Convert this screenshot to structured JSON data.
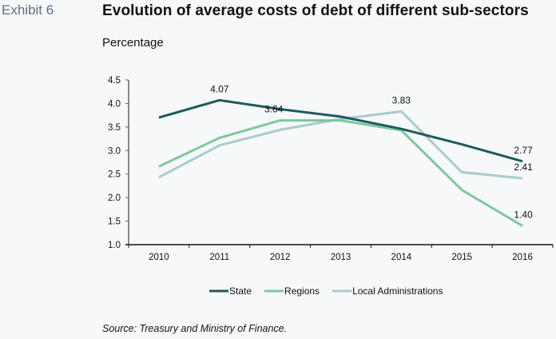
{
  "header": {
    "exhibit_label": "Exhibit 6",
    "title": "Evolution of average costs of debt of different sub-sectors",
    "subtitle": "Percentage"
  },
  "source": "Source: Treasury and Ministry of Finance.",
  "chart_data": {
    "type": "line",
    "title": "Evolution of average costs of debt of different sub-sectors",
    "ylabel": "Percentage",
    "xlabel": "",
    "categories": [
      "2010",
      "2011",
      "2012",
      "2013",
      "2014",
      "2015",
      "2016"
    ],
    "ylim": [
      1.0,
      4.5
    ],
    "yticks": [
      "1.0",
      "1.5",
      "2.0",
      "2.5",
      "3.0",
      "3.5",
      "4.0",
      "4.5"
    ],
    "grid": false,
    "legend_position": "bottom-center",
    "series": [
      {
        "name": "State",
        "color": "#1f5a5c",
        "values": [
          3.7,
          4.07,
          3.88,
          3.72,
          3.46,
          3.13,
          2.77
        ]
      },
      {
        "name": "Regions",
        "color": "#7dc79d",
        "values": [
          2.66,
          3.27,
          3.64,
          3.64,
          3.43,
          2.16,
          1.4
        ]
      },
      {
        "name": "Local Administrations",
        "color": "#a9cccc",
        "values": [
          2.43,
          3.11,
          3.44,
          3.67,
          3.83,
          2.54,
          2.41
        ]
      }
    ],
    "annotations": [
      {
        "series": "State",
        "category": "2011",
        "text": "4.07"
      },
      {
        "series": "Regions",
        "category": "2012",
        "text": "3.64"
      },
      {
        "series": "Local Administrations",
        "category": "2014",
        "text": "3.83"
      },
      {
        "series": "State",
        "category": "2016",
        "text": "2.77"
      },
      {
        "series": "Local Administrations",
        "category": "2016",
        "text": "2.41"
      },
      {
        "series": "Regions",
        "category": "2016",
        "text": "1.40"
      }
    ]
  }
}
